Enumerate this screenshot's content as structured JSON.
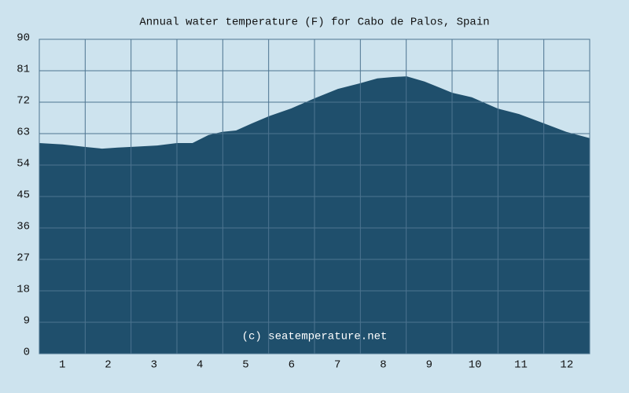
{
  "chart_data": {
    "type": "area",
    "title": "Annual water temperature (F) for Cabo de Palos, Spain",
    "annotation": "(c) seatemperature.net",
    "x": [
      0.5,
      1.01,
      1.49,
      1.87,
      2.21,
      2.51,
      3.07,
      3.5,
      3.84,
      4.19,
      4.49,
      4.79,
      5.13,
      5.51,
      5.99,
      6.5,
      7.01,
      7.49,
      7.87,
      8.21,
      8.51,
      8.9,
      9.24,
      9.5,
      9.93,
      10.49,
      10.96,
      11.51,
      11.99,
      12.5
    ],
    "values": [
      60.3,
      59.9,
      59.2,
      58.7,
      59.0,
      59.2,
      59.6,
      60.3,
      60.3,
      62.6,
      63.5,
      63.9,
      65.9,
      68.0,
      70.2,
      73.1,
      75.8,
      77.4,
      78.8,
      79.2,
      79.4,
      77.9,
      76.1,
      74.7,
      73.4,
      70.2,
      68.6,
      65.9,
      63.5,
      61.7
    ],
    "color": "#1f4f6c",
    "xlim": [
      0.5,
      12.5
    ],
    "xticks": [
      1,
      2,
      3,
      4,
      5,
      6,
      7,
      8,
      9,
      10,
      11,
      12
    ],
    "ylim": [
      0,
      90
    ],
    "yticks": [
      0,
      9,
      18,
      27,
      36,
      45,
      54,
      63,
      72,
      81,
      90
    ],
    "grid": true
  }
}
